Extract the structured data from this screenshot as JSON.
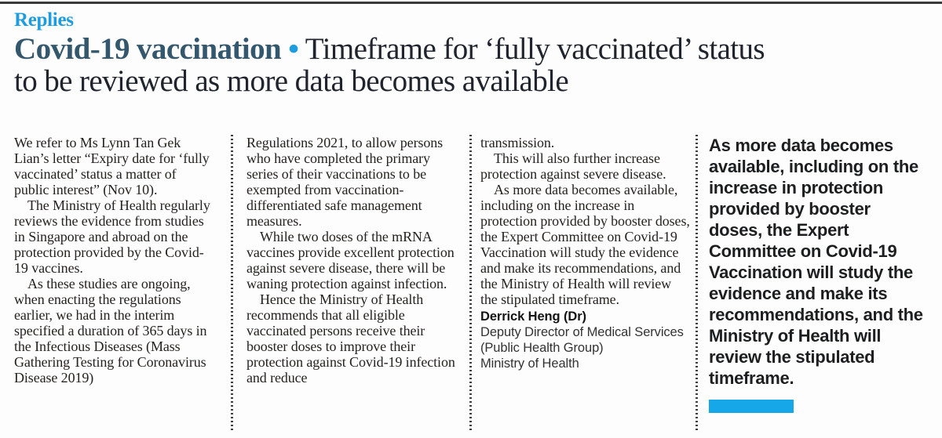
{
  "page": {
    "kicker": "Replies",
    "headline": {
      "topic": "Covid-19 vaccination",
      "separator": "•",
      "title": "Timeframe for ‘fully vaccinated’ status to be reviewed as more data becomes available"
    }
  },
  "article": {
    "columns": [
      {
        "paragraphs": [
          "We refer to Ms Lynn Tan Gek Lian’s letter “Expiry date for ‘fully vaccinated’ status a matter of public interest” (Nov 10).",
          "The Ministry of Health regularly reviews the evidence from studies in Singapore and abroad on the protection provided by the Covid-19 vaccines.",
          "As these studies are ongoing, when enacting the regulations earlier, we had in the interim specified a duration of 365 days in the Infectious Diseases (Mass Gathering Testing for Coronavirus Disease 2019)"
        ]
      },
      {
        "paragraphs": [
          "Regulations 2021, to allow persons who have completed the primary series of their vaccinations to be exempted from vaccination-differentiated safe management measures.",
          "While two doses of the mRNA vaccines provide excellent protection against severe disease, there will be waning protection against infection.",
          "Hence the Ministry of Health recommends that all eligible vaccinated persons receive their booster doses to improve their protection against Covid-19 infection and reduce"
        ]
      },
      {
        "paragraphs": [
          "transmission.",
          "This will also further increase protection against severe disease.",
          "As more data becomes available, including on the increase in protection provided by booster doses, the Expert Committee on Covid-19 Vaccination will study the evidence and make its recommendations, and the Ministry of Health will review the stipulated timeframe."
        ]
      }
    ],
    "signature": {
      "name": "Derrick Heng (Dr)",
      "role": "Deputy Director of Medical Services (Public Health Group)",
      "org": "Ministry of Health"
    },
    "pull_quote": "As more data becomes available, including on the increase in protection provided by booster doses, the Expert Committee on Covid-19 Vaccination will study the evidence and make its recommendations, and the Ministry of Health will review the stipulated timeframe."
  },
  "colors": {
    "accent_blue": "#1d9ce0",
    "headline_topic": "#33576d",
    "quote_bar": "#16a7e8",
    "top_rule": "#3a3a3a"
  }
}
